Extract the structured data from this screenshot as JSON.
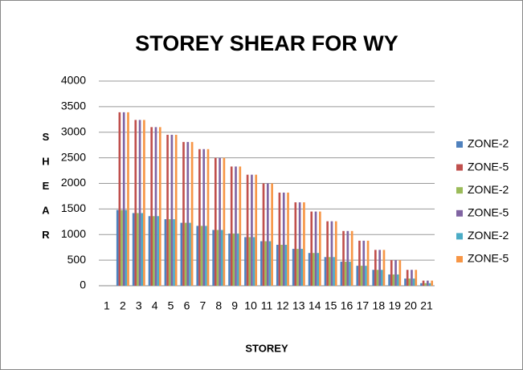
{
  "chart_data": {
    "type": "bar",
    "title": "STOREY SHEAR FOR WY",
    "x_label": "STOREY",
    "y_label": "SHEAR",
    "categories": [
      "1",
      "2",
      "3",
      "4",
      "5",
      "6",
      "7",
      "8",
      "9",
      "10",
      "11",
      "12",
      "13",
      "14",
      "15",
      "16",
      "17",
      "18",
      "19",
      "20",
      "21"
    ],
    "series": [
      {
        "name": "ZONE-2",
        "color": "#4f81bd",
        "values": [
          0,
          1480,
          1420,
          1360,
          1300,
          1230,
          1170,
          1090,
          1020,
          950,
          870,
          800,
          720,
          640,
          560,
          470,
          390,
          310,
          220,
          140,
          50
        ]
      },
      {
        "name": "ZONE-5",
        "color": "#c0504d",
        "values": [
          0,
          3390,
          3240,
          3100,
          2950,
          2810,
          2670,
          2500,
          2330,
          2170,
          2000,
          1820,
          1630,
          1450,
          1260,
          1070,
          880,
          700,
          500,
          310,
          100
        ]
      },
      {
        "name": "ZONE-2",
        "color": "#9bbb59",
        "values": [
          0,
          1480,
          1420,
          1360,
          1300,
          1230,
          1170,
          1090,
          1020,
          950,
          870,
          800,
          720,
          640,
          560,
          470,
          390,
          310,
          220,
          140,
          50
        ]
      },
      {
        "name": "ZONE-5",
        "color": "#8064a2",
        "values": [
          0,
          3390,
          3240,
          3100,
          2950,
          2810,
          2670,
          2500,
          2330,
          2170,
          2000,
          1820,
          1630,
          1450,
          1260,
          1070,
          880,
          700,
          500,
          310,
          100
        ]
      },
      {
        "name": "ZONE-2",
        "color": "#4bacc6",
        "values": [
          0,
          1480,
          1420,
          1360,
          1300,
          1230,
          1170,
          1090,
          1020,
          950,
          870,
          800,
          720,
          640,
          560,
          470,
          390,
          310,
          220,
          140,
          50
        ]
      },
      {
        "name": "ZONE-5",
        "color": "#f79646",
        "values": [
          0,
          3390,
          3240,
          3100,
          2950,
          2810,
          2670,
          2500,
          2330,
          2170,
          2000,
          1820,
          1630,
          1450,
          1260,
          1070,
          880,
          700,
          500,
          310,
          100
        ]
      }
    ],
    "ylim": [
      0,
      4000
    ],
    "yticks": [
      0,
      500,
      1000,
      1500,
      2000,
      2500,
      3000,
      3500,
      4000
    ],
    "grid": true,
    "legend": "right"
  }
}
